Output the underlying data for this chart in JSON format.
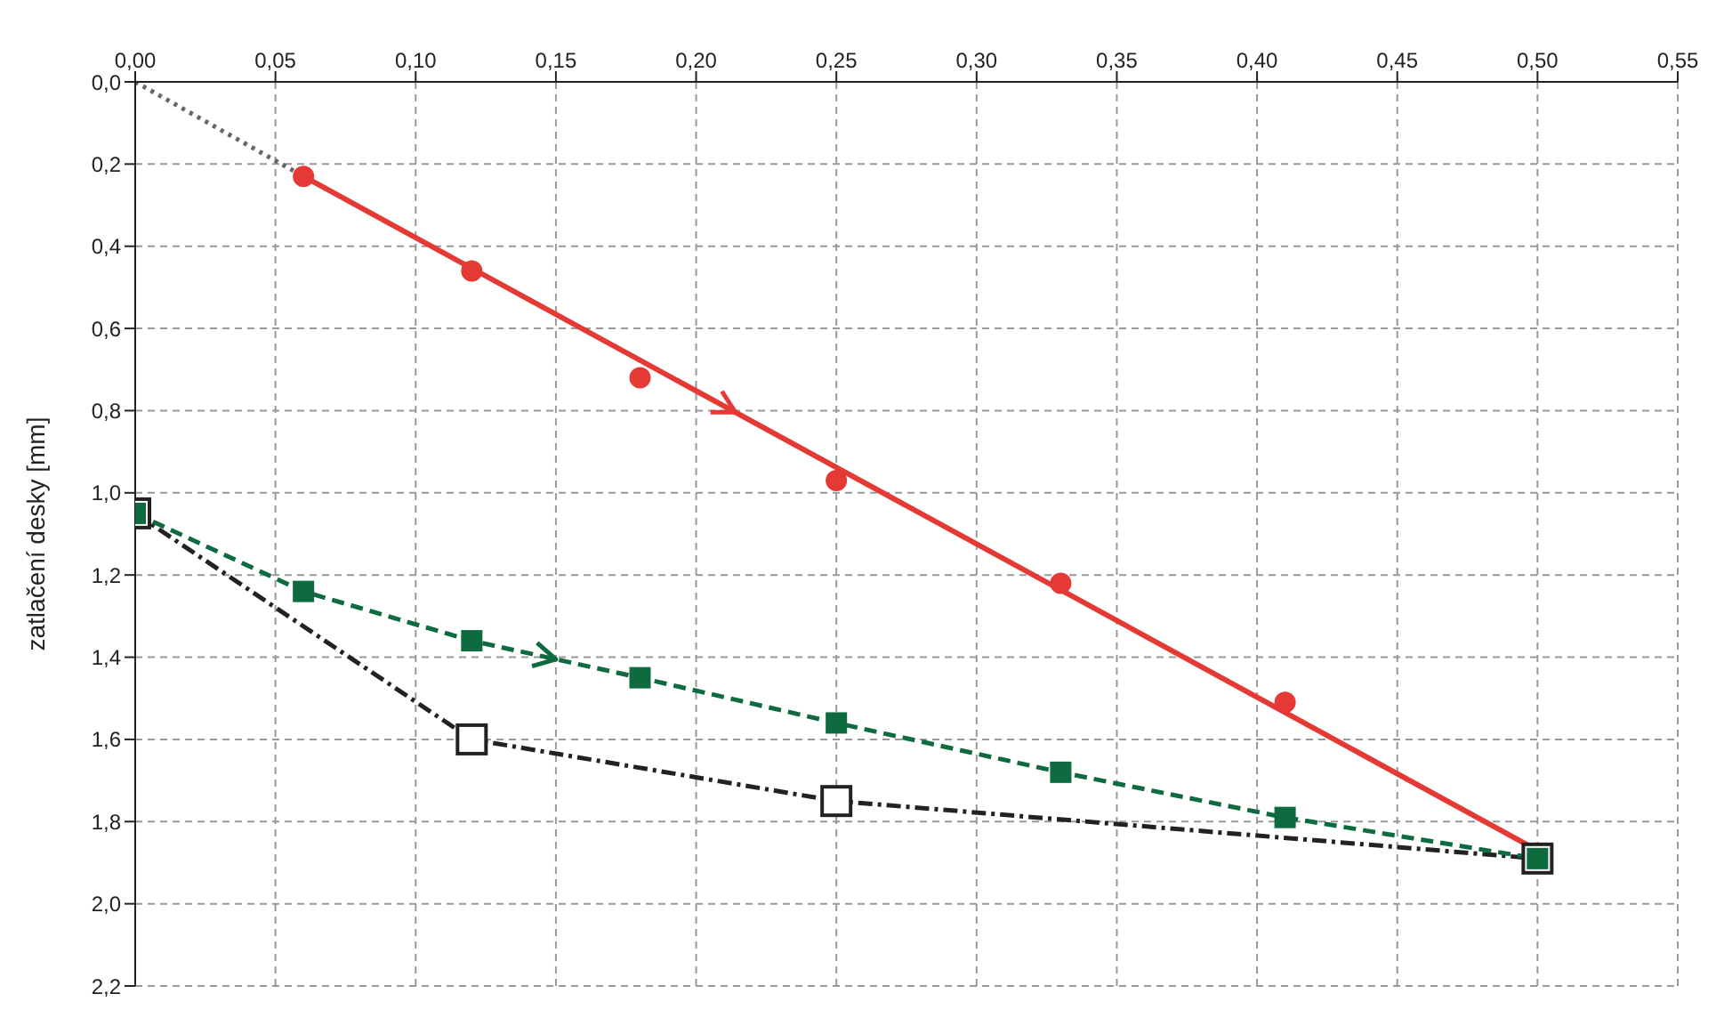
{
  "chart_data": {
    "type": "line",
    "ylabel": "zatlačení desky [mm]",
    "xlim": [
      0,
      0.55
    ],
    "xticks": [
      {
        "value": 0,
        "label": "0,00"
      },
      {
        "value": 0.05,
        "label": "0,05"
      },
      {
        "value": 0.1,
        "label": "0,10"
      },
      {
        "value": 0.15,
        "label": "0,15"
      },
      {
        "value": 0.2,
        "label": "0,20"
      },
      {
        "value": 0.25,
        "label": "0,25"
      },
      {
        "value": 0.3,
        "label": "0,30"
      },
      {
        "value": 0.35,
        "label": "0,35"
      },
      {
        "value": 0.4,
        "label": "0,40"
      },
      {
        "value": 0.45,
        "label": "0,45"
      },
      {
        "value": 0.5,
        "label": "0,50"
      },
      {
        "value": 0.55,
        "label": "0,55"
      }
    ],
    "ylim": [
      2.2,
      0
    ],
    "yticks": [
      {
        "value": 0,
        "label": "0,0"
      },
      {
        "value": 0.2,
        "label": "0,2"
      },
      {
        "value": 0.4,
        "label": "0,4"
      },
      {
        "value": 0.6,
        "label": "0,6"
      },
      {
        "value": 0.8,
        "label": "0,8"
      },
      {
        "value": 1,
        "label": "1,0"
      },
      {
        "value": 1.2,
        "label": "1,2"
      },
      {
        "value": 1.4,
        "label": "1,4"
      },
      {
        "value": 1.6,
        "label": "1,6"
      },
      {
        "value": 1.8,
        "label": "1,8"
      },
      {
        "value": 2,
        "label": "2,0"
      },
      {
        "value": 2.2,
        "label": "2,2"
      }
    ],
    "grid": true,
    "series": [
      {
        "type": "line",
        "color": "#666666",
        "marker": "none",
        "line_style": "dotted",
        "x": [
          0,
          0.06
        ],
        "values": [
          0,
          0.23
        ]
      },
      {
        "type": "line",
        "color": "#e53935",
        "marker": "none",
        "line_style": "solid",
        "x": [
          0.06,
          0.5
        ],
        "values": [
          0.23,
          1.87
        ]
      },
      {
        "type": "scatter",
        "color": "#e53935",
        "marker": "circle",
        "x": [
          0.06,
          0.12,
          0.18,
          0.25,
          0.33,
          0.41
        ],
        "values": [
          0.23,
          0.46,
          0.72,
          0.97,
          1.22,
          1.51
        ]
      },
      {
        "type": "line",
        "color": "#222222",
        "marker": "square",
        "line_style": "dashdot",
        "x": [
          0,
          0.12,
          0.25,
          0.5
        ],
        "values": [
          1.05,
          1.6,
          1.75,
          1.89
        ]
      },
      {
        "type": "line",
        "color": "#0d6b3f",
        "marker": "square",
        "line_style": "dashed",
        "x": [
          0,
          0.06,
          0.12,
          0.18,
          0.25,
          0.33,
          0.41,
          0.5
        ],
        "values": [
          1.05,
          1.24,
          1.36,
          1.45,
          1.56,
          1.68,
          1.79,
          1.89
        ]
      }
    ]
  }
}
